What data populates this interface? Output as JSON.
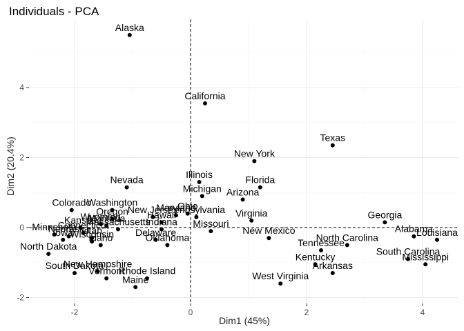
{
  "chart_data": {
    "type": "scatter",
    "title": "Individuals - PCA",
    "xlabel": "Dim1 (45%)",
    "ylabel": "Dim2 (20.4%)",
    "xlim": [
      -3.2,
      4.6
    ],
    "ylim": [
      -2.35,
      6.0
    ],
    "x_ticks": [
      -2,
      0,
      2,
      4
    ],
    "y_ticks": [
      -2,
      0,
      2,
      4
    ],
    "grid": true,
    "reference_lines": {
      "x": 0,
      "y": 0
    },
    "point_color": "#000000",
    "points": [
      {
        "label": "Alaska",
        "x": -1.05,
        "y": 5.5
      },
      {
        "label": "California",
        "x": 0.25,
        "y": 3.55
      },
      {
        "label": "Texas",
        "x": 2.45,
        "y": 2.35
      },
      {
        "label": "New York",
        "x": 1.1,
        "y": 1.9
      },
      {
        "label": "Illinois",
        "x": 0.15,
        "y": 1.3
      },
      {
        "label": "Florida",
        "x": 1.2,
        "y": 1.15
      },
      {
        "label": "Nevada",
        "x": -1.1,
        "y": 1.15
      },
      {
        "label": "Michigan",
        "x": 0.2,
        "y": 0.9
      },
      {
        "label": "Arizona",
        "x": 0.9,
        "y": 0.8
      },
      {
        "label": "Colorado",
        "x": -2.05,
        "y": 0.5
      },
      {
        "label": "Washington",
        "x": -1.35,
        "y": 0.5
      },
      {
        "label": "Ohio",
        "x": -0.05,
        "y": 0.4
      },
      {
        "label": "Maryland",
        "x": -0.25,
        "y": 0.35
      },
      {
        "label": "New Jersey",
        "x": -0.65,
        "y": 0.3
      },
      {
        "label": "Pennsylvania",
        "x": 0.1,
        "y": 0.3
      },
      {
        "label": "Oregon",
        "x": -1.35,
        "y": 0.25
      },
      {
        "label": "Virginia",
        "x": 1.05,
        "y": 0.2
      },
      {
        "label": "Hawaii",
        "x": -0.5,
        "y": 0.15
      },
      {
        "label": "Georgia",
        "x": 3.35,
        "y": 0.15
      },
      {
        "label": "Wyoming",
        "x": -1.55,
        "y": 0.1
      },
      {
        "label": "Montana",
        "x": -1.45,
        "y": 0.05
      },
      {
        "label": "Kansas",
        "x": -1.9,
        "y": 0.0
      },
      {
        "label": "Massachusetts",
        "x": -1.25,
        "y": -0.05
      },
      {
        "label": "Indiana",
        "x": -0.5,
        "y": -0.05
      },
      {
        "label": "Missouri",
        "x": 0.35,
        "y": -0.1
      },
      {
        "label": "Connecticut",
        "x": -1.85,
        "y": -0.15
      },
      {
        "label": "Minnesota",
        "x": -2.35,
        "y": -0.2
      },
      {
        "label": "Nebraska",
        "x": -2.1,
        "y": -0.25
      },
      {
        "label": "Utah",
        "x": -1.7,
        "y": -0.3
      },
      {
        "label": "Alabama",
        "x": 3.85,
        "y": -0.25
      },
      {
        "label": "Delaware",
        "x": -0.6,
        "y": -0.35
      },
      {
        "label": "New Mexico",
        "x": 1.35,
        "y": -0.3
      },
      {
        "label": "Iowa",
        "x": -2.2,
        "y": -0.35
      },
      {
        "label": "Wisconsin",
        "x": -1.7,
        "y": -0.4
      },
      {
        "label": "Idaho",
        "x": -1.55,
        "y": -0.5
      },
      {
        "label": "Louisiana",
        "x": 4.25,
        "y": -0.35
      },
      {
        "label": "Oklahoma",
        "x": -0.4,
        "y": -0.5
      },
      {
        "label": "North Carolina",
        "x": 2.7,
        "y": -0.5
      },
      {
        "label": "North Dakota",
        "x": -2.45,
        "y": -0.75
      },
      {
        "label": "Tennessee",
        "x": 2.25,
        "y": -0.65
      },
      {
        "label": "South Carolina",
        "x": 3.75,
        "y": -0.9
      },
      {
        "label": "Mississippi",
        "x": 4.05,
        "y": -1.05
      },
      {
        "label": "Kentucky",
        "x": 2.15,
        "y": -1.05
      },
      {
        "label": "South Dakota",
        "x": -2.0,
        "y": -1.3
      },
      {
        "label": "New Hampshire",
        "x": -1.6,
        "y": -1.25
      },
      {
        "label": "Vermont",
        "x": -1.45,
        "y": -1.45
      },
      {
        "label": "Arkansas",
        "x": 2.45,
        "y": -1.3
      },
      {
        "label": "Rhode Island",
        "x": -0.75,
        "y": -1.45
      },
      {
        "label": "Maine",
        "x": -0.95,
        "y": -1.7
      },
      {
        "label": "West Virginia",
        "x": 1.55,
        "y": -1.6
      }
    ]
  }
}
